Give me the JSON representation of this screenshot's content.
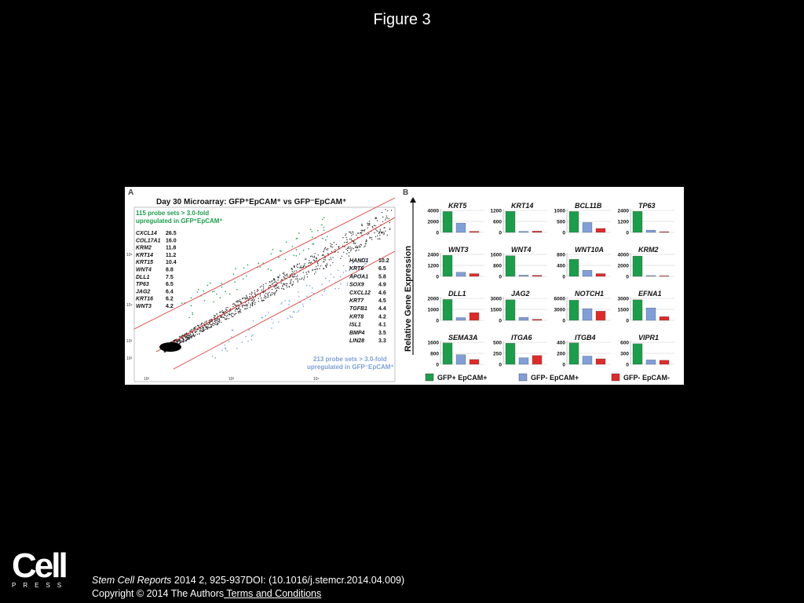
{
  "slide_title": "Figure 3",
  "panelA": {
    "label": "A",
    "title": "Day 30 Microarray: GFP⁺EpCAM⁺ vs GFP⁻EpCAM⁺",
    "up_note_1": "115 probe sets > 3.0-fold",
    "up_note_2": "upregulated in GFP⁺EpCAM⁺",
    "down_note_1": "213 probe sets > 3.0-fold",
    "down_note_2": "upregulated in GFP⁻EpCAM⁺",
    "y_ticks": [
      "10⁵",
      "10⁴",
      "10³",
      "10²"
    ],
    "x_ticks": [
      "10²",
      "10³",
      "10⁴"
    ],
    "left_genes": [
      {
        "gene": "CXCL14",
        "fold": "26.5"
      },
      {
        "gene": "COL17A1",
        "fold": "16.0"
      },
      {
        "gene": "KRM2",
        "fold": "11.8"
      },
      {
        "gene": "KRT14",
        "fold": "11.2"
      },
      {
        "gene": "KRT15",
        "fold": "10.4"
      },
      {
        "gene": "WNT4",
        "fold": "8.8"
      },
      {
        "gene": "DLL1",
        "fold": "7.5"
      },
      {
        "gene": "TP63",
        "fold": "6.5"
      },
      {
        "gene": "JAG2",
        "fold": "6.4"
      },
      {
        "gene": "KRT16",
        "fold": "6.2"
      },
      {
        "gene": "WNT3",
        "fold": "4.2"
      }
    ],
    "right_genes": [
      {
        "gene": "HAND1",
        "fold": "10.2"
      },
      {
        "gene": "KRT6",
        "fold": "6.5"
      },
      {
        "gene": "APOA1",
        "fold": "5.8"
      },
      {
        "gene": "SOX9",
        "fold": "4.9"
      },
      {
        "gene": "CXCL12",
        "fold": "4.6"
      },
      {
        "gene": "KRT7",
        "fold": "4.5"
      },
      {
        "gene": "TGFB1",
        "fold": "4.4"
      },
      {
        "gene": "KRT8",
        "fold": "4.2"
      },
      {
        "gene": "ISL1",
        "fold": "4.1"
      },
      {
        "gene": "BMP4",
        "fold": "3.5"
      },
      {
        "gene": "LIN28",
        "fold": "3.3"
      }
    ]
  },
  "panelB": {
    "label": "B",
    "ylabel": "Relative Gene Expression",
    "legend": [
      "GFP+ EpCAM+",
      "GFP- EpCAM+",
      "GFP- EpCAM-"
    ],
    "colors": [
      "#1a9e4a",
      "#7f9fd9",
      "#e02a2a"
    ]
  },
  "chart_data": {
    "type": "bar",
    "ylabel": "Relative Gene Expression",
    "series_names": [
      "GFP+ EpCAM+",
      "GFP- EpCAM+",
      "GFP- EpCAM-"
    ],
    "panels": [
      {
        "gene": "KRT5",
        "ticks": [
          "4000",
          "2000",
          "0"
        ],
        "ymax": 4000,
        "values": [
          3800,
          1700,
          200
        ]
      },
      {
        "gene": "KRT14",
        "ticks": [
          "1200",
          "600",
          "0"
        ],
        "ymax": 1200,
        "values": [
          1150,
          60,
          70
        ]
      },
      {
        "gene": "BCL11B",
        "ticks": [
          "1000",
          "500",
          "0"
        ],
        "ymax": 1000,
        "values": [
          950,
          450,
          180
        ]
      },
      {
        "gene": "TP63",
        "ticks": [
          "2400",
          "1200",
          "0"
        ],
        "ymax": 2400,
        "values": [
          2300,
          250,
          80
        ]
      },
      {
        "gene": "WNT3",
        "ticks": [
          "2400",
          "1200",
          "0"
        ],
        "ymax": 2400,
        "values": [
          2300,
          450,
          300
        ]
      },
      {
        "gene": "WNT4",
        "ticks": [
          "1600",
          "800",
          "0"
        ],
        "ymax": 1600,
        "values": [
          1500,
          90,
          80
        ]
      },
      {
        "gene": "WNT10A",
        "ticks": [
          "800",
          "400",
          "0"
        ],
        "ymax": 800,
        "values": [
          620,
          220,
          100
        ]
      },
      {
        "gene": "KRM2",
        "ticks": [
          "4000",
          "2000",
          "0"
        ],
        "ymax": 4000,
        "values": [
          3700,
          150,
          60
        ]
      },
      {
        "gene": "DLL1",
        "ticks": [
          "2000",
          "1000",
          "0"
        ],
        "ymax": 2000,
        "values": [
          1900,
          250,
          700
        ]
      },
      {
        "gene": "JAG2",
        "ticks": [
          "3000",
          "1500",
          "0"
        ],
        "ymax": 3000,
        "values": [
          2800,
          400,
          150
        ]
      },
      {
        "gene": "NOTCH1",
        "ticks": [
          "6000",
          "3000",
          "0"
        ],
        "ymax": 6000,
        "values": [
          5500,
          3200,
          2500
        ]
      },
      {
        "gene": "EFNA1",
        "ticks": [
          "3000",
          "1500",
          "0"
        ],
        "ymax": 3000,
        "values": [
          2800,
          1700,
          500
        ]
      },
      {
        "gene": "SEMA3A",
        "ticks": [
          "1600",
          "800",
          "0"
        ],
        "ymax": 1600,
        "values": [
          1550,
          700,
          350
        ]
      },
      {
        "gene": "ITGA6",
        "ticks": [
          "500",
          "250",
          "0"
        ],
        "ymax": 500,
        "values": [
          480,
          150,
          200
        ]
      },
      {
        "gene": "ITGB4",
        "ticks": [
          "400",
          "200",
          "0"
        ],
        "ymax": 400,
        "values": [
          390,
          150,
          100
        ]
      },
      {
        "gene": "VIPR1",
        "ticks": [
          "600",
          "300",
          "0"
        ],
        "ymax": 600,
        "values": [
          560,
          120,
          110
        ]
      }
    ]
  },
  "citation": {
    "journal": "Stem Cell Reports",
    "rest": " 2014 2, 925-937DOI: (10.1016/j.stemcr.2014.04.009)",
    "copyright": "Copyright © 2014 The Authors",
    "link": " Terms and Conditions"
  },
  "logo": {
    "word": "Cell",
    "sub": "PRESS"
  }
}
